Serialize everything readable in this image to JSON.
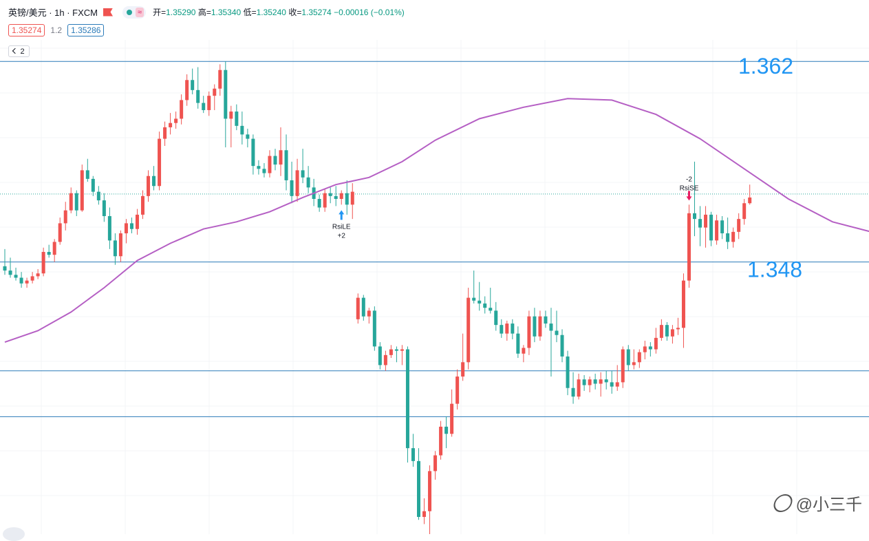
{
  "header": {
    "symbol": "英镑/美元 · 1h · FXCM",
    "wave_icon": "≈",
    "open_label": "开=",
    "open": "1.35290",
    "high_label": "高=",
    "high": "1.35340",
    "low_label": "低=",
    "low": "1.35240",
    "close_label": "收=",
    "close": "1.35274",
    "change": "−0.00016 (−0.01%)"
  },
  "price_row": {
    "bid": "1.35274",
    "spread": "1.2",
    "ask": "1.35286"
  },
  "collapse_count": "2",
  "watermark": "@小三千",
  "colors": {
    "up": "#ef5350",
    "down": "#26a69a",
    "ma": "#b55fc4",
    "hline": "#2a7ab8",
    "price_line": "#26a69a",
    "label_big": "#2196f3"
  },
  "chart_data": {
    "type": "candlestick",
    "ohlc_order": "open-high-low-close",
    "candles": [
      [
        1.3477,
        1.3489,
        1.3471,
        1.3474
      ],
      [
        1.3474,
        1.3483,
        1.3469,
        1.3471
      ],
      [
        1.3471,
        1.3476,
        1.3467,
        1.3469
      ],
      [
        1.3469,
        1.3473,
        1.3462,
        1.3465
      ],
      [
        1.3465,
        1.3469,
        1.3462,
        1.3467
      ],
      [
        1.3467,
        1.3473,
        1.3465,
        1.347
      ],
      [
        1.347,
        1.3475,
        1.3468,
        1.3472
      ],
      [
        1.3472,
        1.349,
        1.347,
        1.3487
      ],
      [
        1.3487,
        1.3492,
        1.3483,
        1.3485
      ],
      [
        1.3485,
        1.3496,
        1.348,
        1.3494
      ],
      [
        1.3494,
        1.3511,
        1.3492,
        1.3507
      ],
      [
        1.3507,
        1.3522,
        1.3502,
        1.3516
      ],
      [
        1.3516,
        1.3532,
        1.3514,
        1.3528
      ],
      [
        1.3528,
        1.353,
        1.3512,
        1.3516
      ],
      [
        1.3516,
        1.3548,
        1.3515,
        1.3544
      ],
      [
        1.3544,
        1.3552,
        1.3536,
        1.3538
      ],
      [
        1.3538,
        1.354,
        1.3526,
        1.3529
      ],
      [
        1.3529,
        1.3533,
        1.352,
        1.3523
      ],
      [
        1.3523,
        1.3528,
        1.3508,
        1.3512
      ],
      [
        1.3512,
        1.3518,
        1.3489,
        1.3495
      ],
      [
        1.3495,
        1.35,
        1.3478,
        1.3484
      ],
      [
        1.3484,
        1.3502,
        1.348,
        1.35
      ],
      [
        1.35,
        1.351,
        1.3493,
        1.3507
      ],
      [
        1.3507,
        1.3511,
        1.35,
        1.3503
      ],
      [
        1.3503,
        1.3517,
        1.3499,
        1.3513
      ],
      [
        1.3513,
        1.353,
        1.351,
        1.3526
      ],
      [
        1.3526,
        1.3544,
        1.3522,
        1.354
      ],
      [
        1.354,
        1.3547,
        1.353,
        1.3533
      ],
      [
        1.3533,
        1.3571,
        1.353,
        1.3566
      ],
      [
        1.3566,
        1.3578,
        1.3561,
        1.3574
      ],
      [
        1.3574,
        1.3584,
        1.3569,
        1.3577
      ],
      [
        1.3577,
        1.3585,
        1.3573,
        1.358
      ],
      [
        1.358,
        1.3597,
        1.3576,
        1.3593
      ],
      [
        1.3593,
        1.3611,
        1.3589,
        1.3607
      ],
      [
        1.3607,
        1.3615,
        1.3597,
        1.36
      ],
      [
        1.36,
        1.3616,
        1.3587,
        1.3591
      ],
      [
        1.3591,
        1.3596,
        1.3584,
        1.3586
      ],
      [
        1.3586,
        1.3599,
        1.3582,
        1.3596
      ],
      [
        1.3596,
        1.3604,
        1.3586,
        1.3601
      ],
      [
        1.3601,
        1.3618,
        1.3596,
        1.3614
      ],
      [
        1.3614,
        1.362,
        1.356,
        1.358
      ],
      [
        1.358,
        1.3589,
        1.356,
        1.3585
      ],
      [
        1.3585,
        1.359,
        1.3572,
        1.3575
      ],
      [
        1.3575,
        1.3585,
        1.3562,
        1.3569
      ],
      [
        1.3569,
        1.3573,
        1.356,
        1.3566
      ],
      [
        1.3566,
        1.3569,
        1.3541,
        1.3547
      ],
      [
        1.3547,
        1.3551,
        1.3541,
        1.3545
      ],
      [
        1.3545,
        1.3549,
        1.3539,
        1.3542
      ],
      [
        1.3542,
        1.3558,
        1.3539,
        1.3554
      ],
      [
        1.3554,
        1.3559,
        1.3544,
        1.3548
      ],
      [
        1.3548,
        1.3574,
        1.354,
        1.3558
      ],
      [
        1.3558,
        1.3569,
        1.353,
        1.3537
      ],
      [
        1.3537,
        1.355,
        1.3521,
        1.3526
      ],
      [
        1.3526,
        1.3552,
        1.3522,
        1.3544
      ],
      [
        1.3544,
        1.3559,
        1.3535,
        1.3539
      ],
      [
        1.3539,
        1.3547,
        1.3528,
        1.3532
      ],
      [
        1.3532,
        1.3538,
        1.3519,
        1.3524
      ],
      [
        1.3524,
        1.3527,
        1.3515,
        1.3518
      ],
      [
        1.3518,
        1.3531,
        1.3515,
        1.3528
      ],
      [
        1.3528,
        1.3532,
        1.3521,
        1.3526
      ],
      [
        1.3526,
        1.3533,
        1.3519,
        1.3524
      ],
      [
        1.3524,
        1.353,
        1.352,
        1.3528
      ],
      [
        1.3528,
        1.3537,
        1.3513,
        1.352
      ],
      [
        1.352,
        1.3535,
        1.351,
        1.3529
      ],
      [
        1.344,
        1.3458,
        1.3437,
        1.3455
      ],
      [
        1.3455,
        1.3457,
        1.3439,
        1.3442
      ],
      [
        1.3442,
        1.3448,
        1.3437,
        1.3446
      ],
      [
        1.3446,
        1.3449,
        1.3418,
        1.3421
      ],
      [
        1.3421,
        1.3424,
        1.3405,
        1.3408
      ],
      [
        1.3408,
        1.3418,
        1.3404,
        1.3415
      ],
      [
        1.3415,
        1.3422,
        1.3413,
        1.3419
      ],
      [
        1.3419,
        1.3421,
        1.341,
        1.3418
      ],
      [
        1.3418,
        1.3422,
        1.3408,
        1.3419
      ],
      [
        1.3419,
        1.3421,
        1.334,
        1.335
      ],
      [
        1.335,
        1.336,
        1.3337,
        1.3341
      ],
      [
        1.3341,
        1.335,
        1.33,
        1.3302
      ],
      [
        1.3302,
        1.3315,
        1.3297,
        1.3306
      ],
      [
        1.3306,
        1.3338,
        1.329,
        1.3334
      ],
      [
        1.3334,
        1.3348,
        1.3328,
        1.3345
      ],
      [
        1.3345,
        1.3369,
        1.3342,
        1.3365
      ],
      [
        1.3365,
        1.3372,
        1.335,
        1.336
      ],
      [
        1.336,
        1.3391,
        1.3358,
        1.3381
      ],
      [
        1.3381,
        1.3405,
        1.3377,
        1.34
      ],
      [
        1.34,
        1.343,
        1.3397,
        1.341
      ],
      [
        1.341,
        1.3462,
        1.3405,
        1.3455
      ],
      [
        1.3455,
        1.3474,
        1.3451,
        1.3453
      ],
      [
        1.3453,
        1.3466,
        1.3446,
        1.3451
      ],
      [
        1.3451,
        1.3456,
        1.3444,
        1.3448
      ],
      [
        1.3448,
        1.3462,
        1.3444,
        1.3446
      ],
      [
        1.3446,
        1.3452,
        1.3432,
        1.3436
      ],
      [
        1.3436,
        1.344,
        1.3427,
        1.343
      ],
      [
        1.343,
        1.3439,
        1.3425,
        1.3437
      ],
      [
        1.3437,
        1.344,
        1.3426,
        1.343
      ],
      [
        1.343,
        1.3435,
        1.3413,
        1.3416
      ],
      [
        1.3416,
        1.3422,
        1.341,
        1.342
      ],
      [
        1.342,
        1.3446,
        1.3415,
        1.3442
      ],
      [
        1.3442,
        1.3448,
        1.3424,
        1.3428
      ],
      [
        1.3428,
        1.3446,
        1.3425,
        1.3442
      ],
      [
        1.3442,
        1.3446,
        1.3434,
        1.3437
      ],
      [
        1.3437,
        1.3448,
        1.34,
        1.3432
      ],
      [
        1.3432,
        1.3446,
        1.3424,
        1.3429
      ],
      [
        1.3429,
        1.3433,
        1.341,
        1.3414
      ],
      [
        1.3414,
        1.3418,
        1.3387,
        1.3392
      ],
      [
        1.3392,
        1.3403,
        1.3381,
        1.3386
      ],
      [
        1.3386,
        1.3402,
        1.3384,
        1.3398
      ],
      [
        1.3398,
        1.3401,
        1.339,
        1.3394
      ],
      [
        1.3394,
        1.34,
        1.3389,
        1.3398
      ],
      [
        1.3398,
        1.3402,
        1.3391,
        1.3395
      ],
      [
        1.3395,
        1.3403,
        1.3386,
        1.3398
      ],
      [
        1.3398,
        1.3404,
        1.3391,
        1.3396
      ],
      [
        1.3396,
        1.3404,
        1.3388,
        1.3393
      ],
      [
        1.3393,
        1.3408,
        1.339,
        1.3396
      ],
      [
        1.3396,
        1.3421,
        1.3392,
        1.3419
      ],
      [
        1.3419,
        1.3422,
        1.3404,
        1.3408
      ],
      [
        1.3408,
        1.3419,
        1.3405,
        1.341
      ],
      [
        1.341,
        1.3419,
        1.3406,
        1.3417
      ],
      [
        1.3417,
        1.3425,
        1.3412,
        1.3421
      ],
      [
        1.3421,
        1.3424,
        1.3414,
        1.3419
      ],
      [
        1.3419,
        1.3434,
        1.3416,
        1.3427
      ],
      [
        1.3427,
        1.344,
        1.3425,
        1.3436
      ],
      [
        1.3436,
        1.3438,
        1.3425,
        1.3428
      ],
      [
        1.3428,
        1.3436,
        1.3423,
        1.3433
      ],
      [
        1.3433,
        1.3441,
        1.3429,
        1.3434
      ],
      [
        1.3434,
        1.3472,
        1.342,
        1.3467
      ],
      [
        1.3467,
        1.352,
        1.3462,
        1.3514
      ],
      [
        1.3514,
        1.355,
        1.3498,
        1.351
      ],
      [
        1.351,
        1.3519,
        1.3491,
        1.3504
      ],
      [
        1.3504,
        1.3519,
        1.349,
        1.3513
      ],
      [
        1.3513,
        1.3515,
        1.3491,
        1.3495
      ],
      [
        1.3495,
        1.3513,
        1.3492,
        1.3509
      ],
      [
        1.3509,
        1.3512,
        1.3496,
        1.35
      ],
      [
        1.35,
        1.3511,
        1.3489,
        1.3494
      ],
      [
        1.3494,
        1.3504,
        1.349,
        1.3501
      ],
      [
        1.3501,
        1.3514,
        1.3496,
        1.351
      ],
      [
        1.351,
        1.3524,
        1.3506,
        1.3521
      ],
      [
        1.3521,
        1.3534,
        1.352,
        1.3525
      ]
    ],
    "ma_line": [
      [
        0,
        1.3424
      ],
      [
        6,
        1.3432
      ],
      [
        12,
        1.3445
      ],
      [
        18,
        1.3462
      ],
      [
        24,
        1.3481
      ],
      [
        30,
        1.3493
      ],
      [
        36,
        1.3503
      ],
      [
        42,
        1.3508
      ],
      [
        48,
        1.3515
      ],
      [
        54,
        1.3525
      ],
      [
        60,
        1.3534
      ],
      [
        66,
        1.3539
      ],
      [
        72,
        1.355
      ],
      [
        78,
        1.3565
      ],
      [
        86,
        1.358
      ],
      [
        94,
        1.3588
      ],
      [
        102,
        1.3594
      ],
      [
        110,
        1.3593
      ],
      [
        118,
        1.3583
      ],
      [
        126,
        1.3566
      ],
      [
        134,
        1.3545
      ],
      [
        142,
        1.3524
      ],
      [
        150,
        1.3508
      ],
      [
        158,
        1.35
      ],
      [
        166,
        1.3497
      ],
      [
        172,
        1.3493
      ],
      [
        178,
        1.3479
      ],
      [
        184,
        1.3458
      ],
      [
        192,
        1.3432
      ],
      [
        200,
        1.3412
      ],
      [
        208,
        1.3399
      ],
      [
        214,
        1.3392
      ],
      [
        220,
        1.3393
      ],
      [
        226,
        1.3397
      ],
      [
        232,
        1.34
      ],
      [
        238,
        1.3405
      ],
      [
        244,
        1.3416
      ],
      [
        250,
        1.3433
      ],
      [
        256,
        1.345
      ],
      [
        262,
        1.346
      ],
      [
        266,
        1.3462
      ],
      [
        272,
        1.345
      ],
      [
        278,
        1.3436
      ],
      [
        284,
        1.3428
      ],
      [
        292,
        1.3423
      ],
      [
        298,
        1.3421
      ],
      [
        306,
        1.342
      ],
      [
        314,
        1.3422
      ],
      [
        322,
        1.343
      ],
      [
        330,
        1.3445
      ],
      [
        336,
        1.346
      ],
      [
        342,
        1.3472
      ],
      [
        350,
        1.3482
      ]
    ],
    "ma_x_units": "candle index",
    "levels": [
      1.362,
      1.348
    ],
    "level_labels": [
      "1.362",
      "1.348"
    ],
    "extra_lines": [
      1.3404,
      1.3372
    ],
    "current_price": 1.35274,
    "annotations": [
      {
        "text_top": "RsiLE",
        "text_bottom": "+2",
        "type": "long_entry",
        "candle": 61
      },
      {
        "text_top": "-2",
        "text_bottom": "RsiSE",
        "type": "short_entry",
        "candle": 124
      }
    ],
    "y_range": [
      1.329,
      1.3635
    ]
  }
}
